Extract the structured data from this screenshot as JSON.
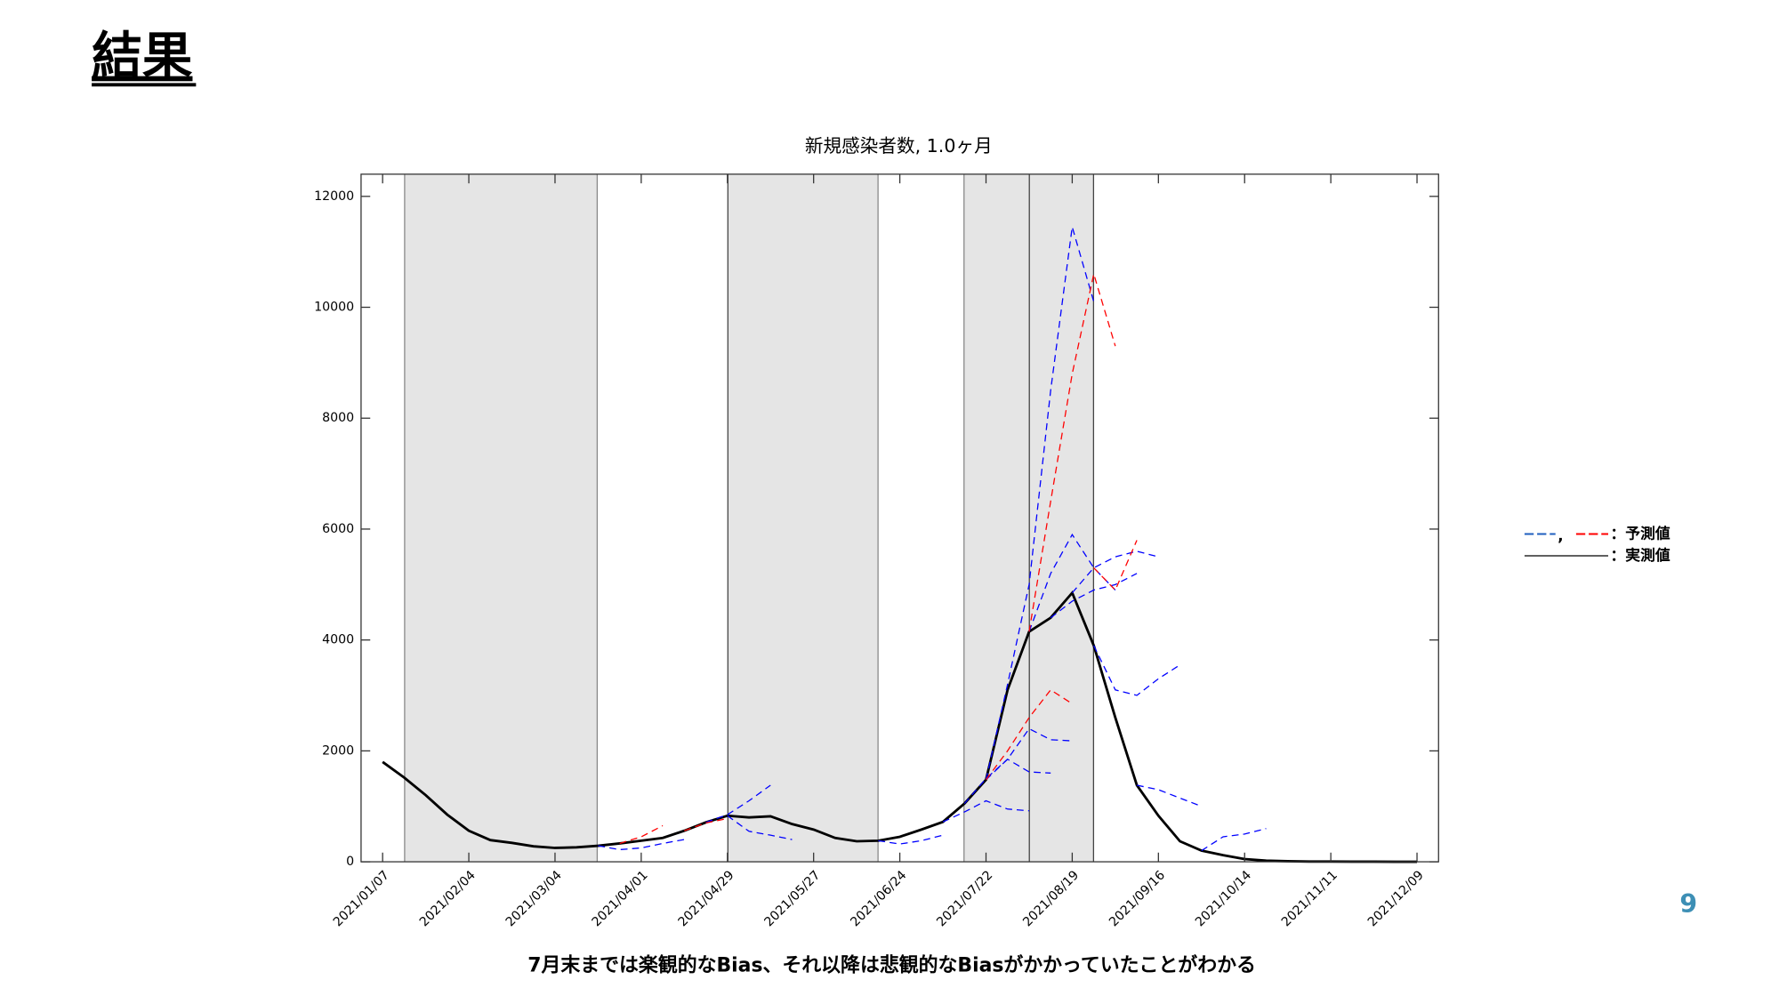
{
  "header": {
    "title": "結果"
  },
  "page_number": 9,
  "caption": "7月末までは楽観的なBias、それ以降は悲観的なBiasがかかっていたことがわかる",
  "chart_data": {
    "type": "line",
    "title": "新規感染者数, 1.0ヶ月",
    "xlim": [
      "2020/12/31",
      "2021/12/16"
    ],
    "xticks": [
      "2021/01/07",
      "2021/02/04",
      "2021/03/04",
      "2021/04/01",
      "2021/04/29",
      "2021/05/27",
      "2021/06/24",
      "2021/07/22",
      "2021/08/19",
      "2021/09/16",
      "2021/10/14",
      "2021/11/11",
      "2021/12/09"
    ],
    "ylim": [
      0,
      12400
    ],
    "yticks": [
      0,
      2000,
      4000,
      6000,
      8000,
      10000,
      12000
    ],
    "legend": [
      {
        "label": "：予測値",
        "separator": ",",
        "colors": [
          "#1f5fbf",
          "#ff0000"
        ]
      },
      {
        "label": "：実測値",
        "colors": [
          "#000000"
        ]
      }
    ],
    "legend_position": "right",
    "series": [
      {
        "color": "#000000",
        "style": "solid",
        "x": [
          "2021/01/07",
          "2021/01/14",
          "2021/01/21",
          "2021/01/28",
          "2021/02/04",
          "2021/02/11",
          "2021/02/18",
          "2021/02/25",
          "2021/03/04",
          "2021/03/11",
          "2021/03/18",
          "2021/03/25",
          "2021/04/01",
          "2021/04/08",
          "2021/04/15",
          "2021/04/22",
          "2021/04/29",
          "2021/05/06",
          "2021/05/13",
          "2021/05/20",
          "2021/05/27",
          "2021/06/03",
          "2021/06/10",
          "2021/06/17",
          "2021/06/24",
          "2021/07/01",
          "2021/07/08",
          "2021/07/15",
          "2021/07/22",
          "2021/07/29",
          "2021/08/05",
          "2021/08/12",
          "2021/08/19",
          "2021/08/26",
          "2021/09/02",
          "2021/09/09",
          "2021/09/16",
          "2021/09/23",
          "2021/09/30",
          "2021/10/07",
          "2021/10/14",
          "2021/10/21",
          "2021/10/28",
          "2021/11/04",
          "2021/11/11",
          "2021/11/18",
          "2021/11/25",
          "2021/12/02",
          "2021/12/09"
        ],
        "values": [
          1800,
          1520,
          1200,
          850,
          560,
          390,
          340,
          280,
          250,
          260,
          290,
          330,
          380,
          430,
          560,
          710,
          830,
          800,
          820,
          680,
          580,
          430,
          370,
          380,
          450,
          580,
          720,
          1050,
          1480,
          3100,
          4150,
          4400,
          4850,
          3900,
          2600,
          1380,
          830,
          370,
          200,
          120,
          50,
          20,
          10,
          5,
          5,
          3,
          2,
          1,
          1
        ]
      },
      {
        "color": "#0000ff",
        "style": "dashed",
        "x": [
          "2021/07/22",
          "2021/07/29",
          "2021/08/05",
          "2021/08/12",
          "2021/08/19",
          "2021/08/26"
        ],
        "values": [
          1480,
          3200,
          5000,
          8500,
          11450,
          10100
        ]
      },
      {
        "color": "#0000ff",
        "style": "dashed",
        "x": [
          "2021/08/05",
          "2021/08/12",
          "2021/08/19",
          "2021/08/26",
          "2021/09/02"
        ],
        "values": [
          4150,
          5200,
          5900,
          5300,
          4900
        ]
      },
      {
        "color": "#0000ff",
        "style": "dashed",
        "x": [
          "2021/08/12",
          "2021/08/19",
          "2021/08/26",
          "2021/09/02",
          "2021/09/09"
        ],
        "values": [
          4400,
          4700,
          4900,
          5000,
          5200
        ]
      },
      {
        "color": "#0000ff",
        "style": "dashed",
        "x": [
          "2021/08/19",
          "2021/08/26",
          "2021/09/02",
          "2021/09/09",
          "2021/09/16"
        ],
        "values": [
          4850,
          5300,
          5500,
          5600,
          5500
        ]
      },
      {
        "color": "#0000ff",
        "style": "dashed",
        "x": [
          "2021/08/26",
          "2021/09/02",
          "2021/09/09",
          "2021/09/16",
          "2021/09/23"
        ],
        "values": [
          3900,
          3100,
          3000,
          3300,
          3550
        ]
      },
      {
        "color": "#0000ff",
        "style": "dashed",
        "x": [
          "2021/09/09",
          "2021/09/16",
          "2021/09/23",
          "2021/09/30"
        ],
        "values": [
          1380,
          1300,
          1150,
          1000
        ]
      },
      {
        "color": "#0000ff",
        "style": "dashed",
        "x": [
          "2021/07/22",
          "2021/07/29",
          "2021/08/05",
          "2021/08/12",
          "2021/08/19"
        ],
        "values": [
          1480,
          1850,
          2400,
          2200,
          2180
        ]
      },
      {
        "color": "#0000ff",
        "style": "dashed",
        "x": [
          "2021/07/15",
          "2021/07/22",
          "2021/07/29",
          "2021/08/05",
          "2021/08/12"
        ],
        "values": [
          1050,
          1500,
          1850,
          1620,
          1600
        ]
      },
      {
        "color": "#0000ff",
        "style": "dashed",
        "x": [
          "2021/07/08",
          "2021/07/15",
          "2021/07/22",
          "2021/07/29",
          "2021/08/05"
        ],
        "values": [
          720,
          900,
          1100,
          950,
          920
        ]
      },
      {
        "color": "#0000ff",
        "style": "dashed",
        "x": [
          "2021/09/30",
          "2021/10/07",
          "2021/10/14",
          "2021/10/21"
        ],
        "values": [
          200,
          450,
          500,
          600
        ]
      },
      {
        "color": "#0000ff",
        "style": "dashed",
        "x": [
          "2021/04/22",
          "2021/04/29",
          "2021/05/06",
          "2021/05/13"
        ],
        "values": [
          710,
          850,
          1100,
          1380
        ]
      },
      {
        "color": "#0000ff",
        "style": "dashed",
        "x": [
          "2021/04/29",
          "2021/05/06",
          "2021/05/13",
          "2021/05/20"
        ],
        "values": [
          830,
          550,
          480,
          400
        ]
      },
      {
        "color": "#0000ff",
        "style": "dashed",
        "x": [
          "2021/03/18",
          "2021/03/25",
          "2021/04/01",
          "2021/04/08",
          "2021/04/15"
        ],
        "values": [
          290,
          220,
          250,
          330,
          400
        ]
      },
      {
        "color": "#0000ff",
        "style": "dashed",
        "x": [
          "2021/06/17",
          "2021/06/24",
          "2021/07/01",
          "2021/07/08"
        ],
        "values": [
          380,
          320,
          380,
          480
        ]
      },
      {
        "color": "#ff0000",
        "style": "dashed",
        "x": [
          "2021/08/05",
          "2021/08/12",
          "2021/08/19",
          "2021/08/26",
          "2021/09/02"
        ],
        "values": [
          4150,
          6500,
          8800,
          10600,
          9300
        ]
      },
      {
        "color": "#ff0000",
        "style": "dashed",
        "x": [
          "2021/08/26",
          "2021/09/02",
          "2021/09/09"
        ],
        "values": [
          5300,
          4900,
          5800
        ]
      },
      {
        "color": "#ff0000",
        "style": "dashed",
        "x": [
          "2021/07/22",
          "2021/07/29",
          "2021/08/05",
          "2021/08/12",
          "2021/08/19"
        ],
        "values": [
          1480,
          2000,
          2600,
          3100,
          2850
        ]
      },
      {
        "color": "#ff0000",
        "style": "dashed",
        "x": [
          "2021/03/25",
          "2021/04/01",
          "2021/04/08"
        ],
        "values": [
          330,
          450,
          650
        ]
      },
      {
        "color": "#ff0000",
        "style": "dashed",
        "x": [
          "2021/04/15",
          "2021/04/22",
          "2021/04/29"
        ],
        "values": [
          560,
          700,
          780
        ]
      }
    ]
  }
}
